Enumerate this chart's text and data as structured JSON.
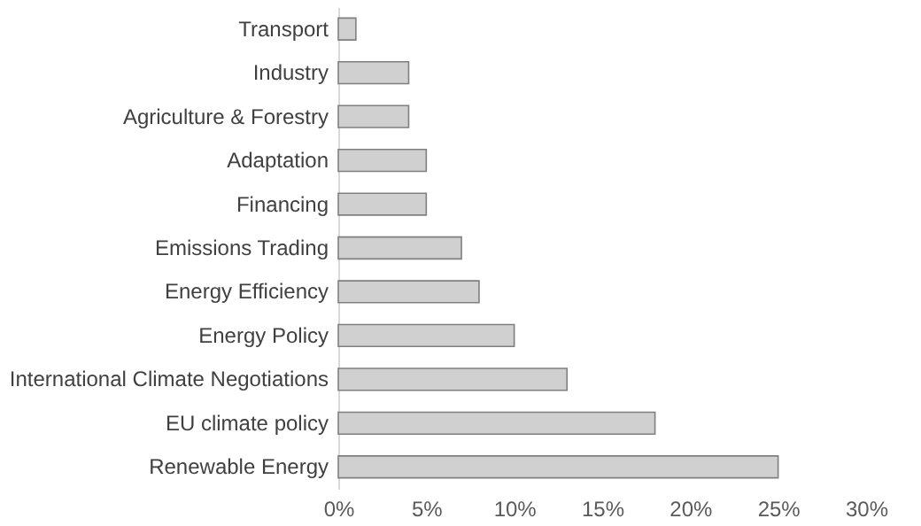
{
  "chart_data": {
    "type": "bar",
    "orientation": "horizontal",
    "categories": [
      "Transport",
      "Industry",
      "Agriculture & Forestry",
      "Adaptation",
      "Financing",
      "Emissions Trading",
      "Energy Efficiency",
      "Energy Policy",
      "International Climate Negotiations",
      "EU climate policy",
      "Renewable Energy"
    ],
    "values": [
      1,
      4,
      4,
      5,
      5,
      7,
      8,
      10,
      13,
      18,
      25
    ],
    "color": "#d0d0d0",
    "xlim": [
      0,
      30
    ],
    "xticks": [
      {
        "value": 0,
        "label": "0%"
      },
      {
        "value": 5,
        "label": "5%"
      },
      {
        "value": 10,
        "label": "10%"
      },
      {
        "value": 15,
        "label": "15%"
      },
      {
        "value": 20,
        "label": "20%"
      },
      {
        "value": 25,
        "label": "25%"
      },
      {
        "value": 30,
        "label": "30%"
      }
    ],
    "grid": false
  }
}
